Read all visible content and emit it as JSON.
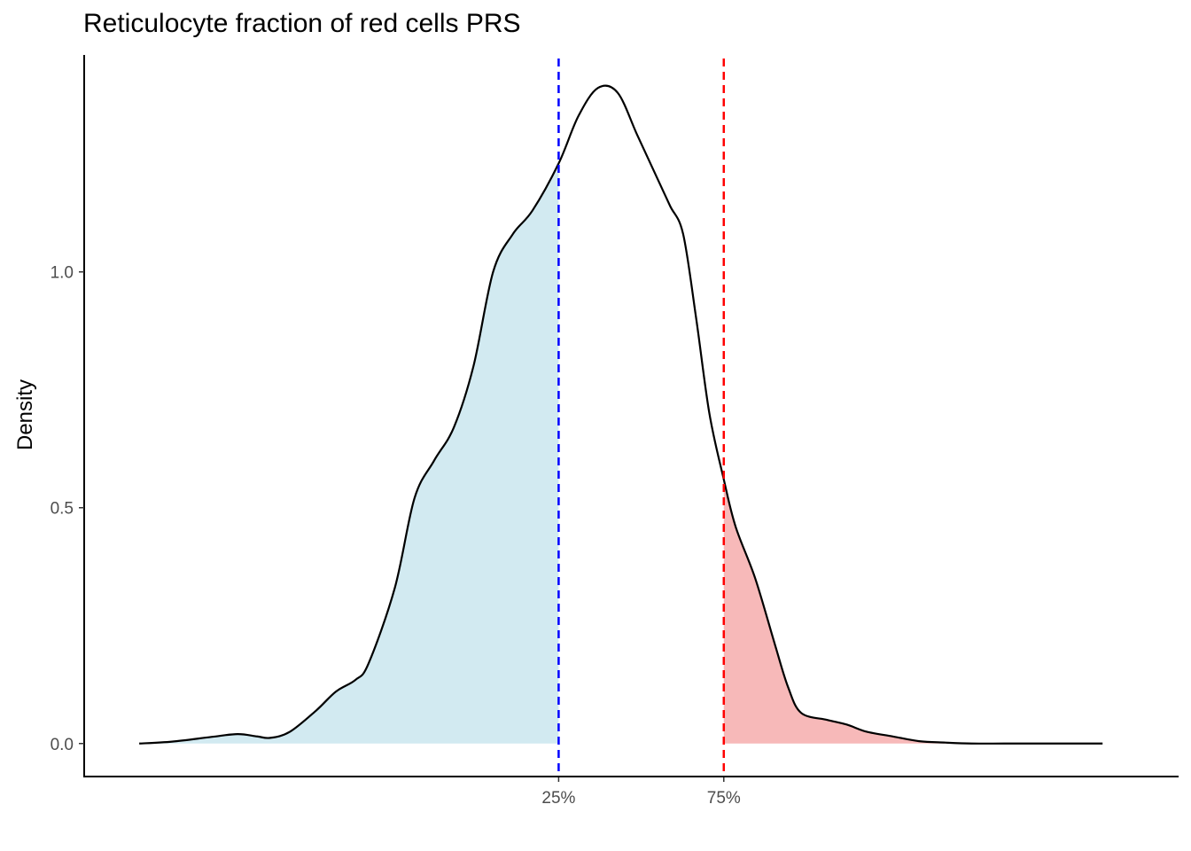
{
  "chart_data": {
    "type": "area",
    "title": "Reticulocyte fraction of red cells PRS",
    "xlabel": "",
    "ylabel": "Density",
    "ylim": [
      -0.07,
      1.46
    ],
    "xlim": [
      -4.27,
      4.08
    ],
    "yticks": [
      0.0,
      0.5,
      1.0
    ],
    "ytick_labels": [
      "0.0",
      "0.5",
      "1.0"
    ],
    "grid": false,
    "legend": "none",
    "quantile_markers": [
      {
        "label": "25%",
        "x": -0.65,
        "color": "#0000ff",
        "line_style": "dashed"
      },
      {
        "label": "75%",
        "x": 0.61,
        "color": "#ff0000",
        "line_style": "dashed"
      }
    ],
    "fill_colors": {
      "lower_tail": "#add8e6",
      "upper_tail": "#f08080",
      "curve": "#000000"
    },
    "density": {
      "x": [
        -3.85,
        -3.6,
        -3.3,
        -3.1,
        -2.95,
        -2.85,
        -2.7,
        -2.5,
        -2.35,
        -2.2,
        -2.1,
        -1.9,
        -1.75,
        -1.6,
        -1.45,
        -1.3,
        -1.15,
        -1.0,
        -0.85,
        -0.65,
        -0.5,
        -0.35,
        -0.2,
        -0.05,
        0.1,
        0.2,
        0.3,
        0.4,
        0.5,
        0.61,
        0.7,
        0.85,
        1.0,
        1.1,
        1.2,
        1.4,
        1.55,
        1.7,
        1.9,
        2.1,
        2.3,
        2.5,
        2.75,
        3.0,
        3.2,
        3.5
      ],
      "y": [
        0.0,
        0.004,
        0.014,
        0.02,
        0.015,
        0.012,
        0.025,
        0.07,
        0.11,
        0.135,
        0.17,
        0.33,
        0.52,
        0.6,
        0.67,
        0.8,
        1.0,
        1.08,
        1.13,
        1.23,
        1.33,
        1.39,
        1.38,
        1.29,
        1.2,
        1.14,
        1.08,
        0.9,
        0.7,
        0.56,
        0.46,
        0.35,
        0.21,
        0.12,
        0.065,
        0.05,
        0.04,
        0.025,
        0.015,
        0.005,
        0.002,
        0.0,
        0.0,
        0.0,
        0.0,
        0.0
      ]
    }
  }
}
